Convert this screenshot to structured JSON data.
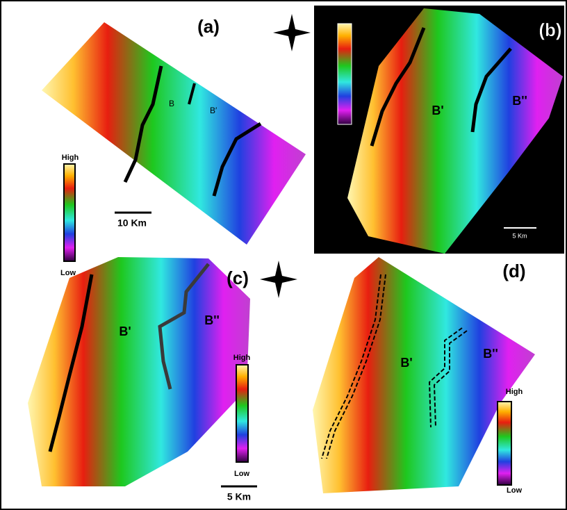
{
  "panels": [
    {
      "label": "(a)",
      "annotations": [
        "B",
        "B′"
      ],
      "legend": {
        "high": "High",
        "low": "Low"
      },
      "scale": "10 Km"
    },
    {
      "label": "(b)",
      "annotations": [
        "B'",
        "B''"
      ],
      "scale": "5 Km"
    },
    {
      "label": "(c)",
      "annotations": [
        "B'",
        "B''"
      ],
      "legend": {
        "high": "High",
        "low": "Low"
      },
      "scale": "5 Km"
    },
    {
      "label": "(d)",
      "annotations": [
        "B'",
        "B''"
      ],
      "legend": {
        "high": "High",
        "low": "Low"
      }
    }
  ]
}
